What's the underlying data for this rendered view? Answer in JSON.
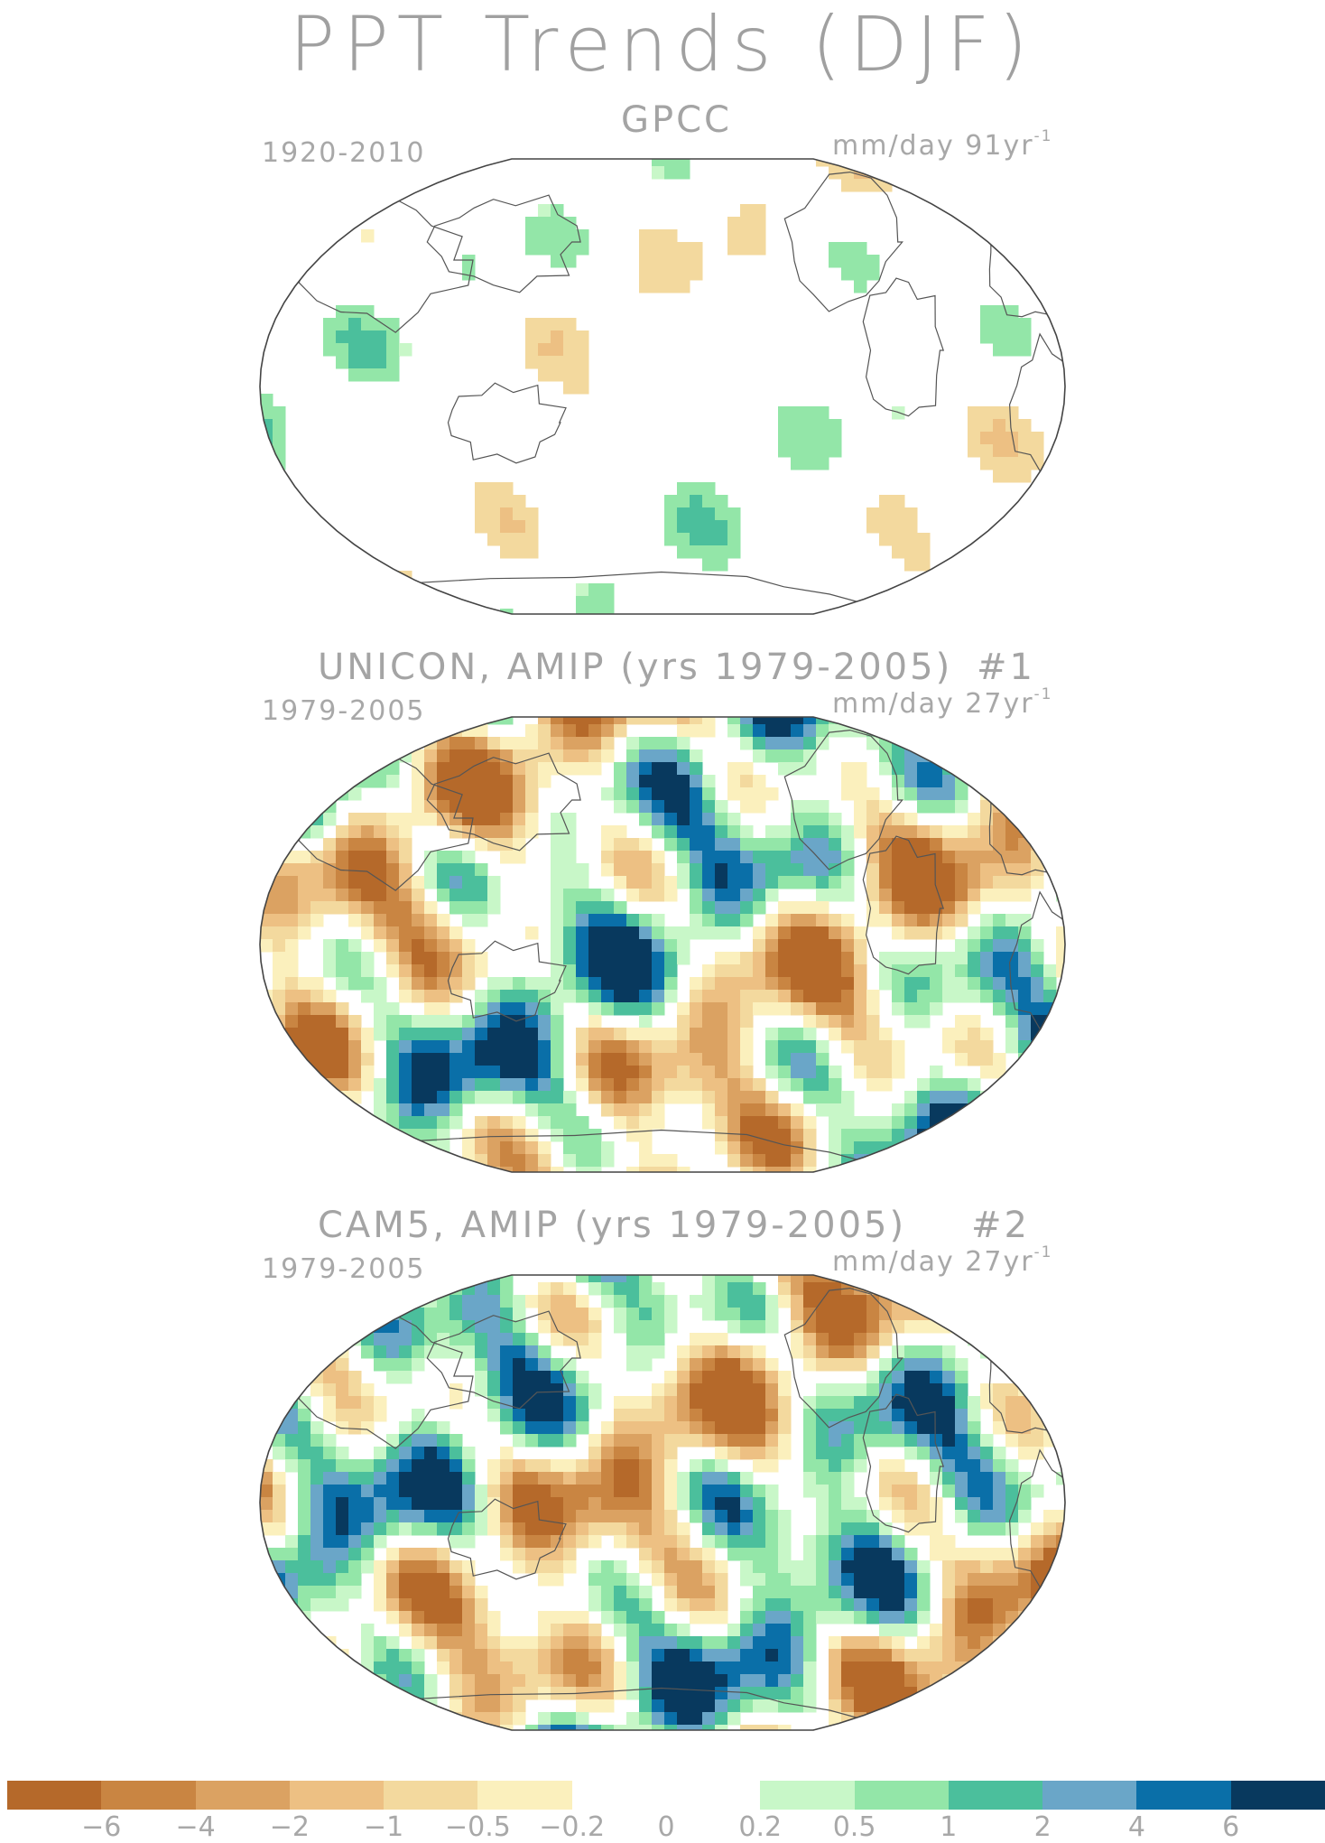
{
  "title": "PPT Trends (DJF)",
  "panels": [
    {
      "title": "GPCC",
      "tag": "",
      "period": "1920-2010",
      "units_base": "mm/day 91yr",
      "units_exp": "-1",
      "intensity": 0.35
    },
    {
      "title": "UNICON, AMIP (yrs 1979-2005)",
      "tag": "#1",
      "period": "1979-2005",
      "units_base": "mm/day 27yr",
      "units_exp": "-1",
      "intensity": 1.0
    },
    {
      "title": "CAM5, AMIP (yrs 1979-2005)",
      "tag": "#2",
      "period": "1979-2005",
      "units_base": "mm/day 27yr",
      "units_exp": "-1",
      "intensity": 1.0
    }
  ],
  "colorbar": {
    "colors": [
      "#b5692a",
      "#c98542",
      "#dba262",
      "#edc083",
      "#f3d99e",
      "#fbf0bd",
      "#ffffff",
      "#ffffff",
      "#c8f7c8",
      "#93e6a8",
      "#4bbf9c",
      "#6aa6c8",
      "#0a6fa8",
      "#08395e"
    ],
    "tick_labels": [
      "−6",
      "−4",
      "−2",
      "−1",
      "−0.5",
      "−0.2",
      "0",
      "0.2",
      "0.5",
      "1",
      "2",
      "4",
      "6"
    ]
  }
}
